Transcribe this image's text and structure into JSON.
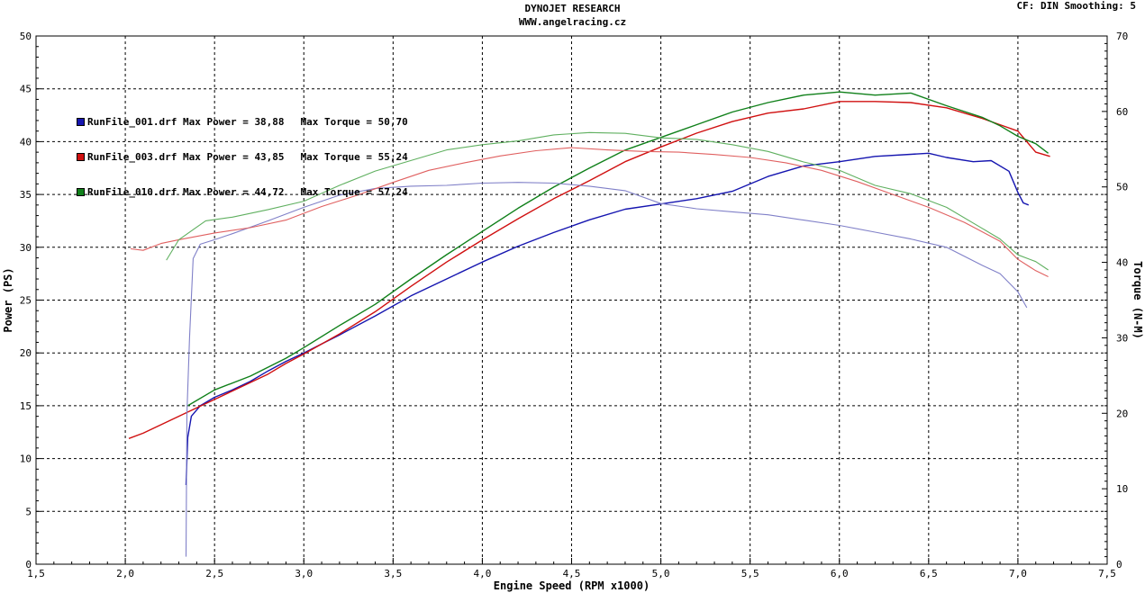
{
  "header": {
    "title": "DYNOJET RESEARCH",
    "subtitle": "WWW.angelracing.cz",
    "cf_info": "CF: DIN  Smoothing: 5"
  },
  "legend": [
    {
      "file": "RunFile_001.drf",
      "power_label": "Max Power = 38,88",
      "torque_label": "Max Torque = 50,70",
      "color": "#1515b0"
    },
    {
      "file": "RunFile_003.drf",
      "power_label": "Max Power = 43,85",
      "torque_label": "Max Torque = 55,24",
      "color": "#d01010"
    },
    {
      "file": "RunFile_010.drf",
      "power_label": "Max Power = 44,72",
      "torque_label": "Max Torque = 57,24",
      "color": "#10801a"
    }
  ],
  "chart_data": {
    "type": "line",
    "xlabel": "Engine Speed (RPM x1000)",
    "ylabel_left": "Power (PS)",
    "ylabel_right": "Torque (N-M)",
    "xlim": [
      1.5,
      7.5
    ],
    "ylim_left": [
      0,
      50
    ],
    "ylim_right": [
      0,
      70
    ],
    "x_ticks": [
      "1,5",
      "2,0",
      "2,5",
      "3,0",
      "3,5",
      "4,0",
      "4,5",
      "5,0",
      "5,5",
      "6,0",
      "6,5",
      "7,0",
      "7,5"
    ],
    "y_left_ticks": [
      "0",
      "5",
      "10",
      "15",
      "20",
      "25",
      "30",
      "35",
      "40",
      "45",
      "50"
    ],
    "y_right_ticks": [
      "0",
      "10",
      "20",
      "30",
      "40",
      "50",
      "60",
      "70"
    ],
    "grid": true,
    "series": [
      {
        "name": "RunFile_001.drf",
        "kind": "power",
        "axis": "left",
        "color": "#1515b0",
        "points": [
          [
            2.34,
            7.5
          ],
          [
            2.35,
            12
          ],
          [
            2.37,
            14
          ],
          [
            2.42,
            15
          ],
          [
            2.5,
            15.8
          ],
          [
            2.6,
            16.5
          ],
          [
            2.7,
            17.3
          ],
          [
            2.8,
            18.3
          ],
          [
            2.9,
            19.2
          ],
          [
            3.0,
            20.0
          ],
          [
            3.2,
            21.7
          ],
          [
            3.4,
            23.5
          ],
          [
            3.6,
            25.4
          ],
          [
            3.8,
            27.0
          ],
          [
            4.0,
            28.6
          ],
          [
            4.2,
            30.1
          ],
          [
            4.4,
            31.4
          ],
          [
            4.6,
            32.6
          ],
          [
            4.8,
            33.6
          ],
          [
            5.0,
            34.1
          ],
          [
            5.2,
            34.6
          ],
          [
            5.4,
            35.3
          ],
          [
            5.6,
            36.7
          ],
          [
            5.8,
            37.7
          ],
          [
            6.0,
            38.1
          ],
          [
            6.2,
            38.6
          ],
          [
            6.4,
            38.8
          ],
          [
            6.5,
            38.9
          ],
          [
            6.6,
            38.5
          ],
          [
            6.75,
            38.1
          ],
          [
            6.85,
            38.2
          ],
          [
            6.95,
            37.2
          ],
          [
            7.0,
            35.2
          ],
          [
            7.03,
            34.2
          ],
          [
            7.06,
            34.0
          ]
        ]
      },
      {
        "name": "RunFile_003.drf",
        "kind": "power",
        "axis": "left",
        "color": "#d01010",
        "points": [
          [
            2.02,
            11.9
          ],
          [
            2.1,
            12.4
          ],
          [
            2.2,
            13.2
          ],
          [
            2.3,
            14.0
          ],
          [
            2.4,
            14.8
          ],
          [
            2.5,
            15.6
          ],
          [
            2.6,
            16.4
          ],
          [
            2.7,
            17.2
          ],
          [
            2.8,
            18.0
          ],
          [
            2.9,
            19.0
          ],
          [
            3.0,
            19.9
          ],
          [
            3.2,
            21.8
          ],
          [
            3.4,
            23.9
          ],
          [
            3.6,
            26.3
          ],
          [
            3.8,
            28.6
          ],
          [
            4.0,
            30.7
          ],
          [
            4.2,
            32.7
          ],
          [
            4.4,
            34.6
          ],
          [
            4.6,
            36.3
          ],
          [
            4.8,
            38.1
          ],
          [
            5.0,
            39.5
          ],
          [
            5.2,
            40.8
          ],
          [
            5.4,
            41.9
          ],
          [
            5.6,
            42.7
          ],
          [
            5.8,
            43.1
          ],
          [
            6.0,
            43.8
          ],
          [
            6.2,
            43.8
          ],
          [
            6.4,
            43.7
          ],
          [
            6.6,
            43.2
          ],
          [
            6.8,
            42.2
          ],
          [
            6.9,
            41.6
          ],
          [
            7.0,
            41.0
          ],
          [
            7.1,
            39.0
          ],
          [
            7.18,
            38.6
          ]
        ]
      },
      {
        "name": "RunFile_010.drf",
        "kind": "power",
        "axis": "left",
        "color": "#10801a",
        "points": [
          [
            2.35,
            15.0
          ],
          [
            2.5,
            16.5
          ],
          [
            2.7,
            17.8
          ],
          [
            2.9,
            19.5
          ],
          [
            3.0,
            20.5
          ],
          [
            3.2,
            22.6
          ],
          [
            3.4,
            24.6
          ],
          [
            3.6,
            27.0
          ],
          [
            3.8,
            29.3
          ],
          [
            4.0,
            31.5
          ],
          [
            4.2,
            33.7
          ],
          [
            4.4,
            35.7
          ],
          [
            4.6,
            37.5
          ],
          [
            4.8,
            39.2
          ],
          [
            5.0,
            40.4
          ],
          [
            5.2,
            41.6
          ],
          [
            5.4,
            42.8
          ],
          [
            5.6,
            43.7
          ],
          [
            5.8,
            44.4
          ],
          [
            6.0,
            44.7
          ],
          [
            6.2,
            44.4
          ],
          [
            6.4,
            44.6
          ],
          [
            6.6,
            43.4
          ],
          [
            6.8,
            42.3
          ],
          [
            6.9,
            41.5
          ],
          [
            7.0,
            40.5
          ],
          [
            7.1,
            39.8
          ],
          [
            7.17,
            38.9
          ]
        ]
      },
      {
        "name": "RunFile_001.drf",
        "kind": "torque",
        "axis": "right",
        "color": "#8080c8",
        "points": [
          [
            2.34,
            1.0
          ],
          [
            2.345,
            20.0
          ],
          [
            2.36,
            30.0
          ],
          [
            2.38,
            40.5
          ],
          [
            2.42,
            42.4
          ],
          [
            2.5,
            43.0
          ],
          [
            2.6,
            43.8
          ],
          [
            2.8,
            45.5
          ],
          [
            3.0,
            47.3
          ],
          [
            3.2,
            48.9
          ],
          [
            3.4,
            49.8
          ],
          [
            3.6,
            50.1
          ],
          [
            3.8,
            50.2
          ],
          [
            4.0,
            50.5
          ],
          [
            4.2,
            50.6
          ],
          [
            4.4,
            50.5
          ],
          [
            4.6,
            50.1
          ],
          [
            4.8,
            49.5
          ],
          [
            5.0,
            47.8
          ],
          [
            5.2,
            47.1
          ],
          [
            5.4,
            46.7
          ],
          [
            5.6,
            46.3
          ],
          [
            5.8,
            45.6
          ],
          [
            6.0,
            44.9
          ],
          [
            6.2,
            44.0
          ],
          [
            6.4,
            43.1
          ],
          [
            6.6,
            42.0
          ],
          [
            6.8,
            39.6
          ],
          [
            6.9,
            38.5
          ],
          [
            7.0,
            36.1
          ],
          [
            7.05,
            34.0
          ]
        ]
      },
      {
        "name": "RunFile_003.drf",
        "kind": "torque",
        "axis": "right",
        "color": "#e06060",
        "points": [
          [
            2.03,
            41.8
          ],
          [
            2.1,
            41.6
          ],
          [
            2.2,
            42.5
          ],
          [
            2.3,
            43.0
          ],
          [
            2.5,
            43.9
          ],
          [
            2.7,
            44.6
          ],
          [
            2.9,
            45.6
          ],
          [
            3.1,
            47.4
          ],
          [
            3.3,
            48.9
          ],
          [
            3.5,
            50.6
          ],
          [
            3.7,
            52.2
          ],
          [
            3.9,
            53.2
          ],
          [
            4.1,
            54.1
          ],
          [
            4.3,
            54.8
          ],
          [
            4.5,
            55.2
          ],
          [
            4.7,
            54.9
          ],
          [
            4.9,
            54.7
          ],
          [
            5.1,
            54.6
          ],
          [
            5.3,
            54.3
          ],
          [
            5.5,
            53.9
          ],
          [
            5.7,
            53.2
          ],
          [
            5.9,
            52.2
          ],
          [
            6.1,
            50.7
          ],
          [
            6.3,
            49.0
          ],
          [
            6.5,
            47.3
          ],
          [
            6.7,
            45.3
          ],
          [
            6.9,
            42.8
          ],
          [
            7.0,
            40.4
          ],
          [
            7.1,
            38.9
          ],
          [
            7.17,
            38.1
          ]
        ]
      },
      {
        "name": "RunFile_010.drf",
        "kind": "torque",
        "axis": "right",
        "color": "#60b060",
        "points": [
          [
            2.23,
            40.3
          ],
          [
            2.3,
            43.0
          ],
          [
            2.45,
            45.5
          ],
          [
            2.6,
            46.0
          ],
          [
            2.8,
            47.0
          ],
          [
            3.0,
            48.1
          ],
          [
            3.2,
            50.2
          ],
          [
            3.4,
            52.1
          ],
          [
            3.6,
            53.5
          ],
          [
            3.8,
            54.9
          ],
          [
            4.0,
            55.6
          ],
          [
            4.2,
            56.1
          ],
          [
            4.4,
            56.9
          ],
          [
            4.6,
            57.2
          ],
          [
            4.8,
            57.1
          ],
          [
            5.0,
            56.5
          ],
          [
            5.2,
            56.3
          ],
          [
            5.4,
            55.6
          ],
          [
            5.6,
            54.7
          ],
          [
            5.8,
            53.3
          ],
          [
            6.0,
            52.2
          ],
          [
            6.2,
            50.2
          ],
          [
            6.4,
            49.1
          ],
          [
            6.6,
            47.3
          ],
          [
            6.8,
            44.5
          ],
          [
            6.9,
            43.1
          ],
          [
            7.0,
            41.0
          ],
          [
            7.1,
            40.1
          ],
          [
            7.17,
            39.0
          ]
        ]
      }
    ]
  }
}
